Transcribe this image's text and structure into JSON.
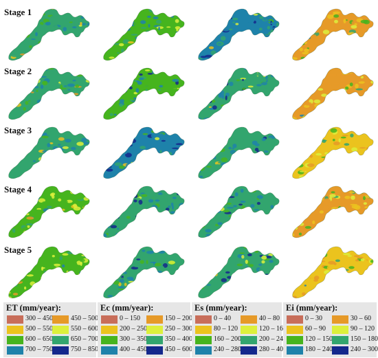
{
  "stages": [
    {
      "label": "Stage 1"
    },
    {
      "label": "Stage 2"
    },
    {
      "label": "Stage 3"
    },
    {
      "label": "Stage 4"
    },
    {
      "label": "Stage 5"
    }
  ],
  "panels": [
    "ET",
    "Ec",
    "Es",
    "Ei"
  ],
  "dominant_class": [
    [
      [
        5,
        6,
        4,
        2,
        3,
        1
      ],
      [
        4,
        6,
        5,
        3,
        2,
        1
      ],
      [
        6,
        5,
        7,
        4,
        3,
        2
      ],
      [
        1,
        2,
        4,
        3,
        5,
        6
      ]
    ],
    [
      [
        5,
        6,
        4,
        3,
        1,
        2
      ],
      [
        4,
        6,
        5,
        7,
        3,
        2
      ],
      [
        5,
        6,
        7,
        4,
        3,
        2
      ],
      [
        1,
        2,
        3,
        4,
        5,
        6
      ]
    ],
    [
      [
        5,
        6,
        4,
        2,
        3,
        1
      ],
      [
        6,
        7,
        5,
        4,
        3,
        2
      ],
      [
        5,
        6,
        7,
        4,
        3,
        2
      ],
      [
        2,
        1,
        3,
        4,
        5,
        6
      ]
    ],
    [
      [
        4,
        3,
        5,
        2,
        6,
        1
      ],
      [
        5,
        6,
        7,
        4,
        3,
        2
      ],
      [
        5,
        6,
        7,
        4,
        3,
        2
      ],
      [
        1,
        2,
        3,
        4,
        5,
        6
      ]
    ],
    [
      [
        4,
        3,
        5,
        6,
        2,
        1
      ],
      [
        5,
        6,
        4,
        7,
        3,
        2
      ],
      [
        5,
        4,
        6,
        3,
        7,
        2
      ],
      [
        2,
        1,
        3,
        4,
        5,
        6
      ]
    ]
  ],
  "legends": [
    {
      "title": "ET (mm/year):",
      "items": [
        {
          "range": "300 – 450",
          "color": "#c86e5a"
        },
        {
          "range": "450 – 500",
          "color": "#e69a28"
        },
        {
          "range": "500 – 550",
          "color": "#ebc31e"
        },
        {
          "range": "550 – 600",
          "color": "#dcf03c"
        },
        {
          "range": "600 – 650",
          "color": "#46b41e"
        },
        {
          "range": "650 – 700",
          "color": "#32a56e"
        },
        {
          "range": "700 – 750",
          "color": "#1e82aa"
        },
        {
          "range": "750 – 850",
          "color": "#14288c"
        }
      ]
    },
    {
      "title": "Ec (mm/year):",
      "items": [
        {
          "range": "0 – 150",
          "color": "#c86e5a"
        },
        {
          "range": "150 – 200",
          "color": "#e69a28"
        },
        {
          "range": "200 – 250",
          "color": "#ebc31e"
        },
        {
          "range": "250 – 300",
          "color": "#dcf03c"
        },
        {
          "range": "300 – 350",
          "color": "#46b41e"
        },
        {
          "range": "350 – 400",
          "color": "#32a56e"
        },
        {
          "range": "400 – 450",
          "color": "#1e82aa"
        },
        {
          "range": "450 – 600",
          "color": "#14288c"
        }
      ]
    },
    {
      "title": "Es (mm/year):",
      "items": [
        {
          "range": "0 – 40",
          "color": "#c86e5a"
        },
        {
          "range": "40 – 80",
          "color": "#e69a28"
        },
        {
          "range": "80 – 120",
          "color": "#ebc31e"
        },
        {
          "range": "120 – 160",
          "color": "#dcf03c"
        },
        {
          "range": "160 – 200",
          "color": "#46b41e"
        },
        {
          "range": "200 – 240",
          "color": "#32a56e"
        },
        {
          "range": "240 – 280",
          "color": "#1e82aa"
        },
        {
          "range": "280 – 400",
          "color": "#14288c"
        }
      ]
    },
    {
      "title": "Ei (mm/year):",
      "items": [
        {
          "range": "0 – 30",
          "color": "#c86e5a"
        },
        {
          "range": "30 – 60",
          "color": "#e69a28"
        },
        {
          "range": "60 – 90",
          "color": "#ebc31e"
        },
        {
          "range": "90 – 120",
          "color": "#dcf03c"
        },
        {
          "range": "120 – 150",
          "color": "#46b41e"
        },
        {
          "range": "150 – 180",
          "color": "#32a56e"
        },
        {
          "range": "180 – 240",
          "color": "#1e82aa"
        },
        {
          "range": "240 – 300",
          "color": "#14288c"
        }
      ]
    }
  ]
}
